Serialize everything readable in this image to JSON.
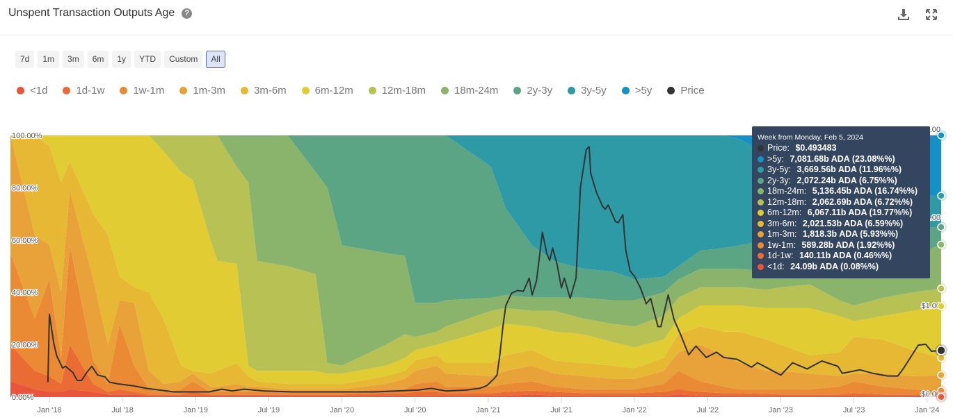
{
  "header": {
    "title": "Unspent Transaction Outputs Age",
    "help_icon": "question-circle-icon"
  },
  "ranges": [
    "7d",
    "1m",
    "3m",
    "6m",
    "1y",
    "YTD",
    "Custom",
    "All"
  ],
  "active_range": "All",
  "tooltip": {
    "heading": "Week from Monday, Feb 5, 2024",
    "rows": [
      {
        "label": "Price: ",
        "value": "$0.493483",
        "color": "#333333"
      },
      {
        "label": ">5y: ",
        "value": "7,081.68b ADA (23.08%%)",
        "color": "#1492c8"
      },
      {
        "label": "3y-5y: ",
        "value": "3,669.56b ADA (11.96%%)",
        "color": "#2e9aa5"
      },
      {
        "label": "2y-3y: ",
        "value": "2,072.24b ADA (6.75%%)",
        "color": "#5ba585"
      },
      {
        "label": "18m-24m: ",
        "value": "5,136.45b ADA (16.74%%)",
        "color": "#8ab46c"
      },
      {
        "label": "12m-18m: ",
        "value": "2,062.69b ADA (6.72%%)",
        "color": "#b7c154"
      },
      {
        "label": "6m-12m: ",
        "value": "6,067.11b ADA (19.77%%)",
        "color": "#e2cc33"
      },
      {
        "label": "3m-6m: ",
        "value": "2,021.53b ADA (6.59%%)",
        "color": "#e6b833"
      },
      {
        "label": "1m-3m: ",
        "value": "1,818.3b ADA (5.93%%)",
        "color": "#e9a23a"
      },
      {
        "label": "1w-1m: ",
        "value": "589.28b ADA (1.92%%)",
        "color": "#ea8a35"
      },
      {
        "label": "1d-1w: ",
        "value": "140.11b ADA (0.46%%)",
        "color": "#eb6b35"
      },
      {
        "label": "<1d: ",
        "value": "24.09b ADA (0.08%%)",
        "color": "#e8553a"
      }
    ]
  },
  "chart_data": {
    "type": "area",
    "stacked": "percent",
    "title": "Unspent Transaction Outputs Age",
    "left_axis": {
      "ticks": [
        "0.00%",
        "20.00%",
        "40.00%",
        "60.00%",
        "80.00%",
        "100.00%"
      ],
      "range": [
        0,
        100
      ]
    },
    "right_axis": {
      "ticks": [
        "$0.00",
        "$1.00",
        "$2.00",
        "$3.00"
      ],
      "range": [
        0,
        3
      ]
    },
    "x_ticks": [
      {
        "t": 2018.0,
        "label": "Jan '18"
      },
      {
        "t": 2018.5,
        "label": "Jul '18"
      },
      {
        "t": 2019.0,
        "label": "Jan '19"
      },
      {
        "t": 2019.5,
        "label": "Jul '19"
      },
      {
        "t": 2020.0,
        "label": "Jan '20"
      },
      {
        "t": 2020.5,
        "label": "Jul '20"
      },
      {
        "t": 2021.0,
        "label": "Jan '21"
      },
      {
        "t": 2021.5,
        "label": "Jul '21"
      },
      {
        "t": 2022.0,
        "label": "Jan '22"
      },
      {
        "t": 2022.5,
        "label": "Jul '22"
      },
      {
        "t": 2023.0,
        "label": "Jan '23"
      },
      {
        "t": 2023.5,
        "label": "Jul '23"
      },
      {
        "t": 2024.0,
        "label": "Jan '24"
      }
    ],
    "x_range": [
      2017.73,
      2024.1
    ],
    "series_names": [
      "<1d",
      "1d-1w",
      "1w-1m",
      "1m-3m",
      "3m-6m",
      "6m-12m",
      "12m-18m",
      "18m-24m",
      "2y-3y",
      "3y-5y",
      ">5y"
    ],
    "series_colors": [
      "#e8553a",
      "#eb6b35",
      "#ea8a35",
      "#e9a23a",
      "#e6b833",
      "#e2cc33",
      "#b7c154",
      "#8ab46c",
      "#5ba585",
      "#2e9aa5",
      "#1492c8"
    ],
    "cumulative_note": "each row: decimal year, then cumulative top (%) of series 1..10; >5y fills to 100",
    "stack_rows": [
      [
        2017.73,
        6,
        20,
        55,
        100,
        100,
        100,
        100,
        100,
        100,
        100
      ],
      [
        2017.9,
        3,
        10,
        30,
        62,
        100,
        100,
        100,
        100,
        100,
        100
      ],
      [
        2018.0,
        2,
        8,
        45,
        58,
        96,
        100,
        100,
        100,
        100,
        100
      ],
      [
        2018.08,
        2,
        5,
        15,
        40,
        82,
        100,
        100,
        100,
        100,
        100
      ],
      [
        2018.14,
        3,
        20,
        58,
        79,
        90,
        100,
        100,
        100,
        100,
        100
      ],
      [
        2018.3,
        2,
        5,
        14,
        45,
        70,
        100,
        100,
        100,
        100,
        100
      ],
      [
        2018.4,
        1,
        2,
        5,
        20,
        62,
        100,
        100,
        100,
        100,
        100
      ],
      [
        2018.48,
        1,
        3,
        28,
        37,
        46,
        100,
        100,
        100,
        100,
        100
      ],
      [
        2018.58,
        1,
        2,
        12,
        36,
        42,
        100,
        100,
        100,
        100,
        100
      ],
      [
        2018.68,
        0.5,
        1,
        3,
        10,
        40,
        100,
        100,
        100,
        100,
        100
      ],
      [
        2018.78,
        0.5,
        1,
        2,
        5,
        30,
        94,
        100,
        100,
        100,
        100
      ],
      [
        2018.9,
        0.5,
        1,
        3,
        6,
        12,
        86,
        100,
        100,
        100,
        100
      ],
      [
        2018.98,
        0.5,
        2,
        6,
        9,
        10,
        83,
        100,
        100,
        100,
        100
      ],
      [
        2019.1,
        0.5,
        1,
        2,
        4,
        9,
        60,
        100,
        100,
        100,
        100
      ],
      [
        2019.15,
        0.5,
        1,
        2,
        4,
        10,
        52,
        100,
        100,
        100,
        100
      ],
      [
        2019.28,
        0.5,
        1,
        2,
        5,
        13,
        51,
        88,
        100,
        100,
        100
      ],
      [
        2019.36,
        0.5,
        1,
        2,
        4,
        8,
        12,
        82,
        100,
        100,
        100
      ],
      [
        2019.42,
        0.5,
        1,
        2,
        4,
        6,
        10,
        52,
        100,
        100,
        100
      ],
      [
        2019.63,
        0.5,
        1,
        2,
        3,
        5,
        10,
        50,
        100,
        100,
        100
      ],
      [
        2019.82,
        0.5,
        1,
        2,
        3,
        5,
        10,
        47,
        86,
        100,
        100
      ],
      [
        2019.9,
        0.5,
        1,
        2,
        3,
        5,
        9,
        13,
        80,
        100,
        100
      ],
      [
        2020.0,
        0.5,
        1,
        2,
        3,
        5,
        9,
        12,
        58,
        100,
        100
      ],
      [
        2020.3,
        0.5,
        1.5,
        3,
        5,
        8,
        12,
        20,
        55,
        100,
        100
      ],
      [
        2020.43,
        0.5,
        1.5,
        3,
        7,
        10,
        15,
        24,
        54,
        100,
        100
      ],
      [
        2020.5,
        0.5,
        2,
        5,
        10,
        14,
        18,
        23,
        36,
        100,
        100
      ],
      [
        2020.65,
        0.5,
        2,
        6,
        12,
        16,
        20,
        25,
        36,
        100,
        100
      ],
      [
        2020.71,
        0.5,
        1.5,
        4,
        9,
        13,
        21,
        27,
        37,
        100,
        100
      ],
      [
        2021.02,
        0.5,
        1.5,
        4,
        8,
        13,
        26,
        33,
        38,
        88,
        100
      ],
      [
        2021.12,
        0.5,
        2,
        5,
        10,
        16,
        28,
        34,
        39,
        72,
        100
      ],
      [
        2021.3,
        1,
        2.5,
        6,
        12,
        18,
        27,
        33,
        38,
        58,
        100
      ],
      [
        2021.45,
        0.5,
        2,
        4,
        9,
        14,
        25,
        33,
        38,
        52,
        100
      ],
      [
        2021.65,
        0.5,
        1.5,
        3,
        8,
        13,
        24,
        30,
        38,
        49,
        100
      ],
      [
        2021.85,
        0.5,
        1.5,
        3,
        7,
        12,
        21,
        28,
        37,
        48,
        100
      ],
      [
        2022.0,
        0.5,
        1.5,
        3,
        7,
        11,
        19,
        27,
        37,
        45,
        100
      ],
      [
        2022.2,
        0.5,
        2,
        5,
        10,
        15,
        22,
        31,
        40,
        46,
        100
      ],
      [
        2022.3,
        1,
        3,
        10,
        17,
        24,
        30,
        38,
        45,
        50,
        100
      ],
      [
        2022.45,
        0.5,
        2,
        6,
        20,
        27,
        35,
        42,
        49,
        56,
        100
      ],
      [
        2022.61,
        0.5,
        1.5,
        4,
        16,
        25,
        35,
        42,
        49,
        57,
        100
      ],
      [
        2022.72,
        0.5,
        1.5,
        3,
        13,
        25,
        35,
        42,
        49,
        58,
        98.5
      ],
      [
        2022.9,
        0.5,
        1.2,
        3,
        10,
        22,
        34,
        41,
        48,
        60,
        93
      ],
      [
        2023.0,
        0.5,
        1,
        3,
        10,
        20,
        34,
        42,
        48,
        61,
        90
      ],
      [
        2023.2,
        0.5,
        1,
        3,
        9,
        16,
        34,
        43,
        50,
        63,
        87
      ],
      [
        2023.4,
        0.5,
        1,
        4,
        8,
        17,
        31,
        37,
        47,
        65,
        84
      ],
      [
        2023.5,
        0.5,
        1.5,
        6,
        9,
        23,
        29,
        35,
        46,
        66,
        82
      ],
      [
        2023.7,
        0.5,
        1,
        4,
        9,
        22,
        31,
        38,
        50,
        66,
        79
      ],
      [
        2023.9,
        0.5,
        1,
        3,
        8,
        18,
        33,
        40,
        54,
        65,
        77
      ],
      [
        2024.1,
        0.08,
        0.54,
        2.46,
        8.39,
        14.98,
        34.75,
        41.47,
        58.21,
        64.96,
        76.92
      ]
    ],
    "price": {
      "name": "Price",
      "color": "#333333",
      "points": [
        [
          2017.99,
          0.13
        ],
        [
          2018.0,
          0.9
        ],
        [
          2018.03,
          0.57
        ],
        [
          2018.05,
          0.43
        ],
        [
          2018.09,
          0.29
        ],
        [
          2018.11,
          0.31
        ],
        [
          2018.16,
          0.24
        ],
        [
          2018.19,
          0.15
        ],
        [
          2018.22,
          0.15
        ],
        [
          2018.26,
          0.25
        ],
        [
          2018.29,
          0.31
        ],
        [
          2018.33,
          0.21
        ],
        [
          2018.38,
          0.19
        ],
        [
          2018.41,
          0.13
        ],
        [
          2018.47,
          0.11
        ],
        [
          2018.57,
          0.09
        ],
        [
          2018.66,
          0.06
        ],
        [
          2018.85,
          0.02
        ],
        [
          2019.09,
          0.02
        ],
        [
          2019.18,
          0.05
        ],
        [
          2019.25,
          0.03
        ],
        [
          2019.33,
          0.05
        ],
        [
          2019.47,
          0.03
        ],
        [
          2019.66,
          0.02
        ],
        [
          2019.9,
          0.02
        ],
        [
          2020.03,
          0.02
        ],
        [
          2020.23,
          0.02
        ],
        [
          2020.52,
          0.04
        ],
        [
          2020.61,
          0.06
        ],
        [
          2020.71,
          0.03
        ],
        [
          2020.85,
          0.04
        ],
        [
          2020.94,
          0.06
        ],
        [
          2020.99,
          0.09
        ],
        [
          2021.04,
          0.17
        ],
        [
          2021.06,
          0.21
        ],
        [
          2021.08,
          0.45
        ],
        [
          2021.1,
          0.76
        ],
        [
          2021.12,
          1.0
        ],
        [
          2021.16,
          1.14
        ],
        [
          2021.2,
          1.17
        ],
        [
          2021.24,
          1.16
        ],
        [
          2021.28,
          1.31
        ],
        [
          2021.3,
          1.12
        ],
        [
          2021.33,
          1.28
        ],
        [
          2021.37,
          1.83
        ],
        [
          2021.4,
          1.59
        ],
        [
          2021.42,
          1.51
        ],
        [
          2021.44,
          1.65
        ],
        [
          2021.47,
          1.47
        ],
        [
          2021.5,
          1.2
        ],
        [
          2021.52,
          1.31
        ],
        [
          2021.56,
          1.08
        ],
        [
          2021.6,
          1.31
        ],
        [
          2021.63,
          2.34
        ],
        [
          2021.67,
          2.77
        ],
        [
          2021.69,
          2.8
        ],
        [
          2021.7,
          2.5
        ],
        [
          2021.74,
          2.28
        ],
        [
          2021.78,
          2.13
        ],
        [
          2021.8,
          2.09
        ],
        [
          2021.82,
          2.14
        ],
        [
          2021.87,
          1.95
        ],
        [
          2021.89,
          1.94
        ],
        [
          2021.92,
          2.03
        ],
        [
          2021.94,
          1.63
        ],
        [
          2021.97,
          1.39
        ],
        [
          2022.0,
          1.33
        ],
        [
          2022.04,
          1.2
        ],
        [
          2022.08,
          1.02
        ],
        [
          2022.11,
          1.08
        ],
        [
          2022.16,
          0.76
        ],
        [
          2022.18,
          0.76
        ],
        [
          2022.23,
          1.12
        ],
        [
          2022.27,
          0.84
        ],
        [
          2022.32,
          0.65
        ],
        [
          2022.37,
          0.44
        ],
        [
          2022.42,
          0.54
        ],
        [
          2022.49,
          0.41
        ],
        [
          2022.56,
          0.47
        ],
        [
          2022.61,
          0.41
        ],
        [
          2022.7,
          0.39
        ],
        [
          2022.8,
          0.3
        ],
        [
          2022.84,
          0.35
        ],
        [
          2022.92,
          0.28
        ],
        [
          2023.0,
          0.21
        ],
        [
          2023.08,
          0.35
        ],
        [
          2023.18,
          0.28
        ],
        [
          2023.28,
          0.37
        ],
        [
          2023.39,
          0.31
        ],
        [
          2023.42,
          0.23
        ],
        [
          2023.54,
          0.27
        ],
        [
          2023.63,
          0.23
        ],
        [
          2023.73,
          0.2
        ],
        [
          2023.8,
          0.2
        ],
        [
          2023.84,
          0.29
        ],
        [
          2023.94,
          0.55
        ],
        [
          2023.99,
          0.56
        ],
        [
          2024.03,
          0.48
        ],
        [
          2024.1,
          0.49
        ]
      ]
    },
    "legend": [
      "<1d",
      "1d-1w",
      "1w-1m",
      "1m-3m",
      "3m-6m",
      "6m-12m",
      "12m-18m",
      "18m-24m",
      "2y-3y",
      "3y-5y",
      ">5y",
      "Price"
    ],
    "legend_placement": "top-left"
  }
}
